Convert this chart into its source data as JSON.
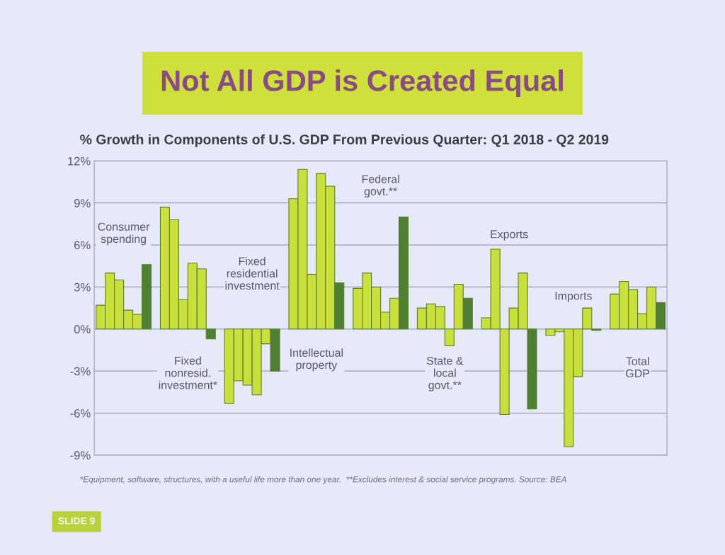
{
  "chart_data": {
    "type": "bar",
    "title": "Not All GDP is Created Equal",
    "subtitle": "% Growth in Components of U.S. GDP From Previous Quarter: Q1 2018 - Q2 2019",
    "categories": [
      null,
      null,
      null,
      null,
      null,
      null,
      null,
      null,
      null,
      null,
      null,
      null,
      null,
      null,
      null,
      null,
      null,
      null,
      null,
      null,
      null,
      null,
      null,
      null,
      null,
      null,
      null,
      null,
      null,
      null,
      null,
      null,
      null,
      null,
      null,
      null,
      null,
      null,
      null,
      null,
      null,
      null,
      null,
      null,
      null,
      null,
      null,
      null,
      null,
      null,
      null,
      null,
      null,
      null,
      null,
      null,
      null,
      null,
      null,
      null,
      null,
      null
    ],
    "series": [
      {
        "color": "#c9df3c",
        "values": [
          1.7,
          4.0,
          3.5,
          1.35,
          1.05,
          null,
          null,
          8.7,
          7.8,
          2.1,
          4.7,
          4.3,
          null,
          null,
          -5.3,
          -3.7,
          -4.0,
          -4.7,
          -1.05,
          null,
          null,
          9.3,
          11.4,
          3.9,
          11.1,
          10.2,
          null,
          null,
          2.9,
          4.0,
          3.0,
          1.2,
          2.2,
          null,
          null,
          1.5,
          1.8,
          1.6,
          -1.2,
          3.2,
          null,
          null,
          0.8,
          5.7,
          -6.1,
          1.5,
          4.0,
          null,
          null,
          -0.45,
          -0.2,
          -8.4,
          -3.4,
          1.5,
          null,
          null,
          2.5,
          3.4,
          2.8,
          1.1,
          3.0,
          null
        ]
      },
      {
        "color": "#4f7f32",
        "values": [
          null,
          null,
          null,
          null,
          null,
          4.6,
          null,
          null,
          null,
          null,
          null,
          null,
          -0.7,
          null,
          null,
          null,
          null,
          null,
          null,
          -3.0,
          null,
          null,
          null,
          null,
          null,
          null,
          3.3,
          null,
          null,
          null,
          null,
          null,
          null,
          8.0,
          null,
          null,
          null,
          null,
          null,
          null,
          2.2,
          null,
          null,
          null,
          null,
          null,
          null,
          -5.7,
          null,
          null,
          null,
          null,
          null,
          null,
          -0.1,
          null,
          null,
          null,
          null,
          null,
          null,
          1.9
        ]
      }
    ],
    "ylim": [
      -9,
      12
    ],
    "yticks": [
      {
        "value": -9,
        "label": "-9%"
      },
      {
        "value": -6,
        "label": "-6%"
      },
      {
        "value": -3,
        "label": "-3%"
      },
      {
        "value": 0,
        "label": "0%"
      },
      {
        "value": 3,
        "label": "3%"
      },
      {
        "value": 6,
        "label": "6%"
      },
      {
        "value": 9,
        "label": "9%"
      },
      {
        "value": 12,
        "label": "12%"
      }
    ],
    "grid": "y",
    "legend": false,
    "annotations": [
      "Consumer\nspending",
      "Fixed\nnonresid.\ninvestment*",
      "Fixed\nresidential\ninvestment",
      "Intellectual\nproperty",
      "Federal\ngovt.**",
      "State &\nlocal\ngovt.**",
      "Exports",
      "Imports",
      "Total\nGDP",
      "*Equipment, software, structures, with a useful life more than one year.  **Excludes interest & social service programs. Source: BEA",
      "SLIDE 9"
    ]
  }
}
